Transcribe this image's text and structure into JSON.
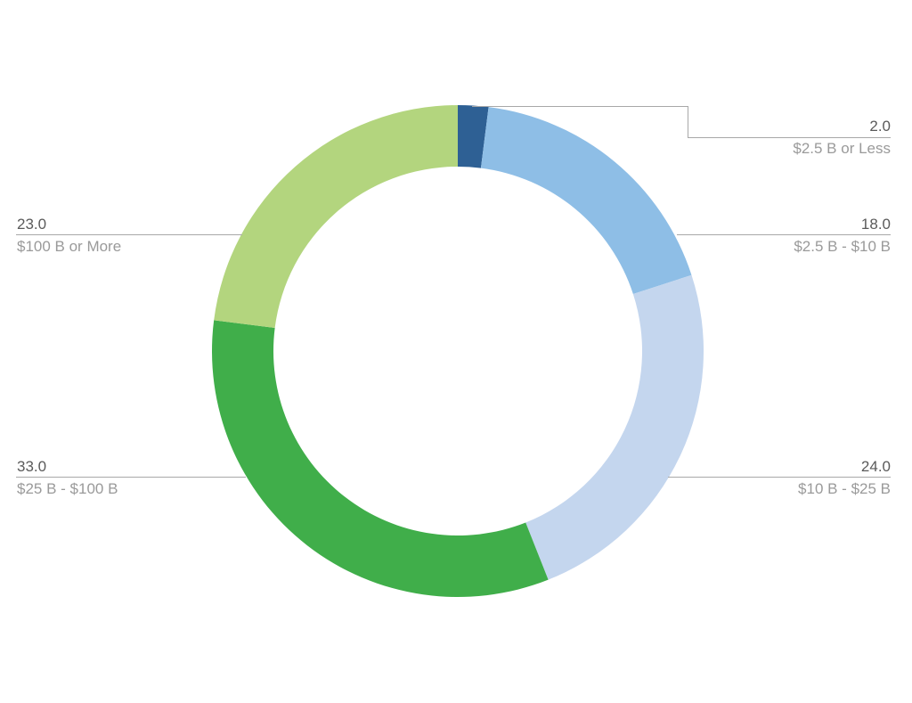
{
  "chart_data": {
    "type": "pie",
    "subtype": "donut",
    "title": "",
    "slices": [
      {
        "label": "$2.5 B or Less",
        "value": 2.0,
        "value_label": "2.0",
        "color": "#2e6094"
      },
      {
        "label": "$2.5 B - $10 B",
        "value": 18.0,
        "value_label": "18.0",
        "color": "#8ebee6"
      },
      {
        "label": "$10 B - $25 B",
        "value": 24.0,
        "value_label": "24.0",
        "color": "#c4d6ee"
      },
      {
        "label": "$25 B - $100 B",
        "value": 33.0,
        "value_label": "33.0",
        "color": "#40ae4a"
      },
      {
        "label": "$100 B or More",
        "value": 23.0,
        "value_label": "23.0",
        "color": "#b3d57e"
      }
    ],
    "start_angle": "top",
    "direction": "clockwise",
    "legend": "none"
  }
}
